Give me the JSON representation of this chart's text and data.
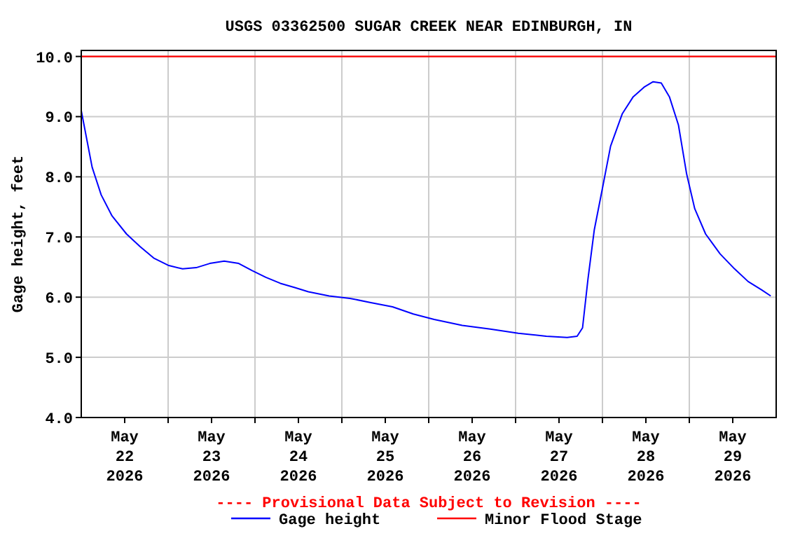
{
  "chart_data": {
    "type": "line",
    "title": "USGS 03362500 SUGAR CREEK NEAR EDINBURGH, IN",
    "ylabel": "Gage height, feet",
    "annotations": [
      "---- Provisional Data Subject to Revision ----"
    ],
    "xlim": [
      "2026-05-22T00:00",
      "2026-05-30T00:00"
    ],
    "xticks": [
      {
        "value": "2026-05-22T12:00",
        "label": "May\n22\n2026"
      },
      {
        "value": "2026-05-23T00:00",
        "label": null
      },
      {
        "value": "2026-05-23T12:00",
        "label": "May\n23\n2026"
      },
      {
        "value": "2026-05-24T00:00",
        "label": null
      },
      {
        "value": "2026-05-24T12:00",
        "label": "May\n24\n2026"
      },
      {
        "value": "2026-05-25T00:00",
        "label": null
      },
      {
        "value": "2026-05-25T12:00",
        "label": "May\n25\n2026"
      },
      {
        "value": "2026-05-26T00:00",
        "label": null
      },
      {
        "value": "2026-05-26T12:00",
        "label": "May\n26\n2026"
      },
      {
        "value": "2026-05-27T00:00",
        "label": null
      },
      {
        "value": "2026-05-27T12:00",
        "label": "May\n27\n2026"
      },
      {
        "value": "2026-05-28T00:00",
        "label": null
      },
      {
        "value": "2026-05-28T12:00",
        "label": "May\n28\n2026"
      },
      {
        "value": "2026-05-29T00:00",
        "label": null
      },
      {
        "value": "2026-05-29T12:00",
        "label": "May\n29\n2026"
      }
    ],
    "ylim": [
      4,
      10.1
    ],
    "yticks": [
      {
        "value": 4,
        "label": "4.0"
      },
      {
        "value": 5,
        "label": "5.0"
      },
      {
        "value": 6,
        "label": "6.0"
      },
      {
        "value": 7,
        "label": "7.0"
      },
      {
        "value": 8,
        "label": "8.0"
      },
      {
        "value": 9,
        "label": "9.0"
      },
      {
        "value": 10,
        "label": "10.0"
      }
    ],
    "grid": true,
    "legend": "bottom",
    "line_style": "solid",
    "marker": "none",
    "ref_lines": [
      {
        "axis": "y",
        "value": 10,
        "label": "Minor Flood Stage",
        "color": "#ff0000"
      }
    ],
    "series": [
      {
        "name": "Gage height",
        "color": "#0000ff",
        "x": [
          "2026-05-22T00:00",
          "2026-05-22T01:30",
          "2026-05-22T03:00",
          "2026-05-22T05:30",
          "2026-05-22T08:30",
          "2026-05-22T12:30",
          "2026-05-22T16:15",
          "2026-05-22T20:00",
          "2026-05-23T00:00",
          "2026-05-23T04:00",
          "2026-05-23T07:45",
          "2026-05-23T11:30",
          "2026-05-23T15:30",
          "2026-05-23T19:30",
          "2026-05-23T23:15",
          "2026-05-24T03:00",
          "2026-05-24T07:00",
          "2026-05-24T11:00",
          "2026-05-24T14:45",
          "2026-05-24T20:30",
          "2026-05-25T02:15",
          "2026-05-25T08:00",
          "2026-05-25T14:00",
          "2026-05-25T19:45",
          "2026-05-26T01:30",
          "2026-05-26T09:15",
          "2026-05-26T17:00",
          "2026-05-27T00:45",
          "2026-05-27T08:30",
          "2026-05-27T14:15",
          "2026-05-27T17:00",
          "2026-05-27T18:30",
          "2026-05-27T20:00",
          "2026-05-27T21:45",
          "2026-05-28T00:00",
          "2026-05-28T02:15",
          "2026-05-28T05:30",
          "2026-05-28T08:30",
          "2026-05-28T11:30",
          "2026-05-28T14:00",
          "2026-05-28T16:15",
          "2026-05-28T18:30",
          "2026-05-28T21:00",
          "2026-05-28T23:15",
          "2026-05-29T01:30",
          "2026-05-29T04:30",
          "2026-05-29T08:30",
          "2026-05-29T12:30",
          "2026-05-29T16:15",
          "2026-05-29T20:00",
          "2026-05-29T22:30"
        ],
        "values": [
          9.1,
          8.63,
          8.16,
          7.7,
          7.35,
          7.05,
          6.84,
          6.65,
          6.53,
          6.47,
          6.49,
          6.56,
          6.6,
          6.56,
          6.44,
          6.33,
          6.23,
          6.16,
          6.09,
          6.02,
          5.98,
          5.91,
          5.84,
          5.72,
          5.63,
          5.53,
          5.47,
          5.4,
          5.35,
          5.33,
          5.35,
          5.49,
          6.3,
          7.12,
          7.81,
          8.51,
          9.05,
          9.33,
          9.49,
          9.58,
          9.56,
          9.33,
          8.86,
          8.05,
          7.47,
          7.05,
          6.72,
          6.47,
          6.26,
          6.12,
          6.02
        ]
      }
    ]
  }
}
